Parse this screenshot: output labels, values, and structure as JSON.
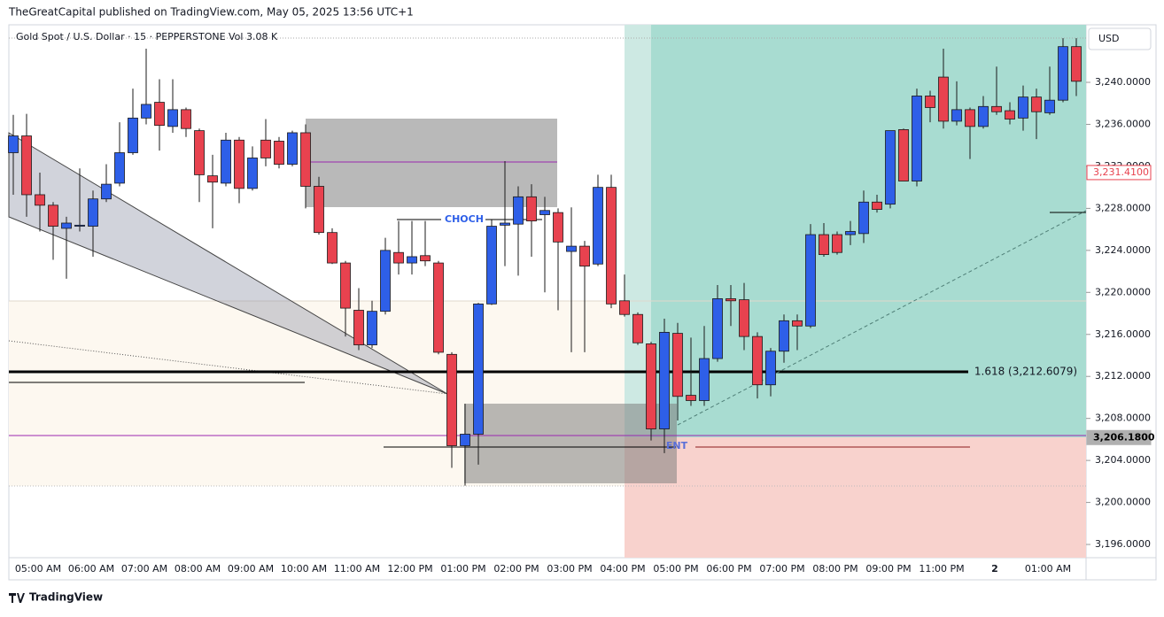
{
  "header": {
    "publisher": "TheGreatCapital published on TradingView.com, May 05, 2025 13:56 UTC+1",
    "footer": "TradingView"
  },
  "chart_data": {
    "type": "candlestick",
    "title": "Gold Spot / U.S. Dollar · 15 · PEPPERSTONE",
    "volume_label": "Vol",
    "volume_value": "3.08 K",
    "currency": "USD",
    "up_color": "#2e5fe8",
    "down_color": "#e8424f",
    "categories": [
      null,
      null,
      "05:00 AM",
      null,
      null,
      null,
      "06:00 AM",
      null,
      null,
      null,
      "07:00 AM",
      null,
      null,
      null,
      "08:00 AM",
      null,
      null,
      null,
      "09:00 AM",
      null,
      null,
      null,
      "10:00 AM",
      null,
      null,
      null,
      "11:00 AM",
      null,
      null,
      null,
      "12:00 PM",
      null,
      null,
      null,
      "01:00 PM",
      null,
      null,
      null,
      "02:00 PM",
      null,
      null,
      null,
      "03:00 PM",
      null,
      null,
      null,
      "04:00 PM",
      null,
      null,
      null,
      "05:00 PM",
      null,
      null,
      null,
      "06:00 PM",
      null,
      null,
      null,
      "07:00 PM",
      null,
      null,
      null,
      "08:00 PM",
      null,
      null,
      null,
      "09:00 PM",
      null,
      null,
      null,
      "11:00 PM",
      null,
      null,
      null,
      "2",
      null,
      null,
      null,
      "01:00 AM",
      null,
      null
    ],
    "open": [
      3233.3,
      3234.9,
      3229.3,
      3228.3,
      3226.1,
      3226.3,
      3226.3,
      3228.9,
      3230.4,
      3233.3,
      3236.6,
      3238.1,
      3235.8,
      3237.4,
      3235.4,
      3231.1,
      3230.4,
      3234.5,
      3229.9,
      3234.5,
      3234.4,
      3232.2,
      3235.2,
      3230.1,
      3225.7,
      3222.8,
      3218.3,
      3215.0,
      3218.2,
      3223.8,
      3222.8,
      3223.5,
      3222.8,
      3214.1,
      3205.4,
      3206.5,
      3218.9,
      3226.4,
      3226.5,
      3229.1,
      3227.4,
      3227.6,
      3223.9,
      3224.4,
      3222.7,
      3230.0,
      3219.2,
      3217.9,
      3215.1,
      3207.0,
      3216.1,
      3210.2,
      3209.7,
      3213.7,
      3219.4,
      3219.3,
      3215.8,
      3211.2,
      3214.4,
      3217.3,
      3216.8,
      3225.5,
      3225.5,
      3225.5,
      3225.6,
      3228.6,
      3228.4,
      3235.5,
      3230.6,
      3238.7,
      3240.5,
      3236.3,
      3237.4,
      3235.8,
      3237.7,
      3237.3,
      3236.6,
      3238.6,
      3237.1,
      3238.3,
      3243.4
    ],
    "high": [
      3236.9,
      3237.0,
      3231.4,
      3228.6,
      3227.2,
      3231.8,
      3229.7,
      3232.2,
      3236.2,
      3239.4,
      3243.2,
      3240.3,
      3240.3,
      3237.6,
      3235.6,
      3233.1,
      3235.2,
      3234.8,
      3233.9,
      3236.5,
      3234.8,
      3235.4,
      3236.0,
      3231.0,
      3226.1,
      3223.0,
      3220.4,
      3219.2,
      3225.2,
      3226.8,
      3226.8,
      3226.8,
      3223.0,
      3214.3,
      3209.4,
      3219.0,
      3226.9,
      3232.5,
      3230.1,
      3230.3,
      3229.1,
      3228.0,
      3228.1,
      3224.9,
      3231.2,
      3231.2,
      3221.7,
      3218.1,
      3215.3,
      3217.5,
      3217.1,
      3215.7,
      3216.8,
      3220.7,
      3220.7,
      3220.9,
      3216.2,
      3214.7,
      3217.9,
      3217.9,
      3226.5,
      3226.6,
      3225.8,
      3226.8,
      3229.7,
      3229.3,
      3235.4,
      3235.6,
      3239.4,
      3239.2,
      3243.2,
      3240.1,
      3237.6,
      3238.7,
      3241.5,
      3238.1,
      3239.7,
      3239.4,
      3241.5,
      3244.2,
      3244.2
    ],
    "low": [
      3229.3,
      3227.2,
      3225.8,
      3223.1,
      3221.3,
      3225.8,
      3223.4,
      3228.6,
      3230.1,
      3233.1,
      3236.0,
      3233.5,
      3235.2,
      3234.8,
      3228.6,
      3226.1,
      3230.1,
      3228.5,
      3229.7,
      3232.0,
      3231.8,
      3232.0,
      3228.0,
      3225.5,
      3222.7,
      3215.8,
      3214.5,
      3214.7,
      3217.9,
      3221.7,
      3221.7,
      3222.5,
      3214.1,
      3203.3,
      3201.6,
      3203.6,
      3218.8,
      3222.5,
      3221.6,
      3223.4,
      3220.0,
      3218.3,
      3214.3,
      3214.3,
      3222.5,
      3218.5,
      3217.7,
      3215.0,
      3205.9,
      3204.7,
      3207.8,
      3209.2,
      3209.2,
      3213.4,
      3216.8,
      3214.5,
      3209.9,
      3210.1,
      3213.3,
      3214.5,
      3216.6,
      3223.4,
      3223.6,
      3224.5,
      3224.7,
      3227.6,
      3228.0,
      3230.6,
      3230.1,
      3236.2,
      3235.6,
      3235.9,
      3232.7,
      3235.6,
      3236.9,
      3236.0,
      3235.4,
      3234.6,
      3236.9,
      3238.1,
      3238.7
    ],
    "close": [
      3234.9,
      3229.3,
      3228.3,
      3226.3,
      3226.6,
      3226.4,
      3228.9,
      3230.3,
      3233.3,
      3236.6,
      3237.9,
      3235.9,
      3237.4,
      3235.6,
      3231.2,
      3230.5,
      3234.5,
      3229.9,
      3232.8,
      3232.8,
      3232.2,
      3235.2,
      3230.1,
      3225.7,
      3222.8,
      3218.5,
      3215.0,
      3218.2,
      3224.0,
      3222.8,
      3223.4,
      3223.0,
      3214.3,
      3205.4,
      3206.5,
      3218.9,
      3226.3,
      3226.6,
      3229.1,
      3226.8,
      3227.8,
      3224.8,
      3224.4,
      3222.5,
      3230.0,
      3218.9,
      3217.9,
      3215.2,
      3207.0,
      3216.2,
      3210.1,
      3209.7,
      3213.7,
      3219.4,
      3219.2,
      3215.8,
      3211.2,
      3214.4,
      3217.3,
      3216.8,
      3225.5,
      3223.6,
      3223.8,
      3225.8,
      3228.6,
      3227.9,
      3235.4,
      3230.6,
      3238.7,
      3237.6,
      3236.3,
      3237.4,
      3235.8,
      3237.7,
      3237.2,
      3236.5,
      3238.6,
      3237.2,
      3238.3,
      3243.4,
      3240.1
    ],
    "ylim": [
      3194.74,
      3245.48
    ],
    "yticks": [
      {
        "value": 3196,
        "label": "3,196.0000"
      },
      {
        "value": 3200,
        "label": "3,200.0000"
      },
      {
        "value": 3204,
        "label": "3,204.0000"
      },
      {
        "value": 3208,
        "label": "3,208.0000"
      },
      {
        "value": 3212,
        "label": "3,212.0000"
      },
      {
        "value": 3216,
        "label": "3,216.0000"
      },
      {
        "value": 3220,
        "label": "3,220.0000"
      },
      {
        "value": 3224,
        "label": "3,224.0000"
      },
      {
        "value": 3228,
        "label": "3,228.0000"
      },
      {
        "value": 3232,
        "label": "3,232.0000"
      },
      {
        "value": 3236,
        "label": "3,236.0000"
      },
      {
        "value": 3240,
        "label": "3,240.0000"
      }
    ],
    "price_labels": [
      {
        "value": 3231.41,
        "label": "3,231.4100",
        "color": "#e8424f"
      },
      {
        "value": 3206.18,
        "label": "3,206.1800",
        "color": "#b0b0b0"
      }
    ],
    "annotations": [
      "CHOCH",
      "ENT",
      "1.618 (3,212.6079)"
    ]
  }
}
